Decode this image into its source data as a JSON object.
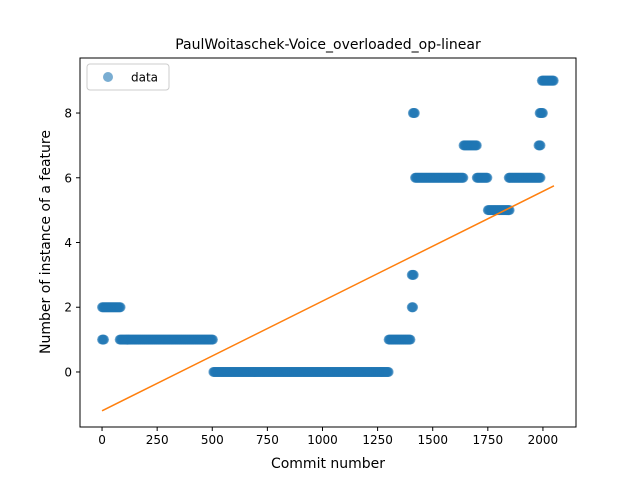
{
  "chart_data": {
    "type": "scatter",
    "title": "PaulWoitaschek-Voice_overloaded_op-linear",
    "xlabel": "Commit number",
    "ylabel": "Number of instance of a feature",
    "xlim": [
      -100,
      2150
    ],
    "ylim": [
      -1.7,
      9.7
    ],
    "xticks": [
      0,
      250,
      500,
      750,
      1000,
      1250,
      1500,
      1750,
      2000
    ],
    "yticks": [
      0,
      2,
      4,
      6,
      8
    ],
    "legend": {
      "entries": [
        "data"
      ],
      "placement": "top-left"
    },
    "grid": false,
    "colors": {
      "data": "#1f77b4",
      "fit": "#ff7f0e"
    },
    "scatter_segments": [
      {
        "x_start": 0,
        "x_end": 10,
        "y": 1
      },
      {
        "x_start": 0,
        "x_end": 85,
        "y": 2
      },
      {
        "x_start": 80,
        "x_end": 505,
        "y": 1
      },
      {
        "x_start": 505,
        "x_end": 1300,
        "y": 0
      },
      {
        "x_start": 1300,
        "x_end": 1400,
        "y": 1
      },
      {
        "x_start": 1405,
        "x_end": 1412,
        "y": 2
      },
      {
        "x_start": 1405,
        "x_end": 1415,
        "y": 3
      },
      {
        "x_start": 1410,
        "x_end": 1420,
        "y": 8
      },
      {
        "x_start": 1420,
        "x_end": 1640,
        "y": 6
      },
      {
        "x_start": 1640,
        "x_end": 1700,
        "y": 7
      },
      {
        "x_start": 1700,
        "x_end": 1750,
        "y": 6
      },
      {
        "x_start": 1750,
        "x_end": 1850,
        "y": 5
      },
      {
        "x_start": 1845,
        "x_end": 1990,
        "y": 6
      },
      {
        "x_start": 1980,
        "x_end": 1990,
        "y": 7
      },
      {
        "x_start": 1985,
        "x_end": 2000,
        "y": 8
      },
      {
        "x_start": 1995,
        "x_end": 2050,
        "y": 9
      }
    ],
    "fit_line": {
      "x": [
        0,
        2050
      ],
      "y": [
        -1.2,
        5.75
      ]
    }
  }
}
